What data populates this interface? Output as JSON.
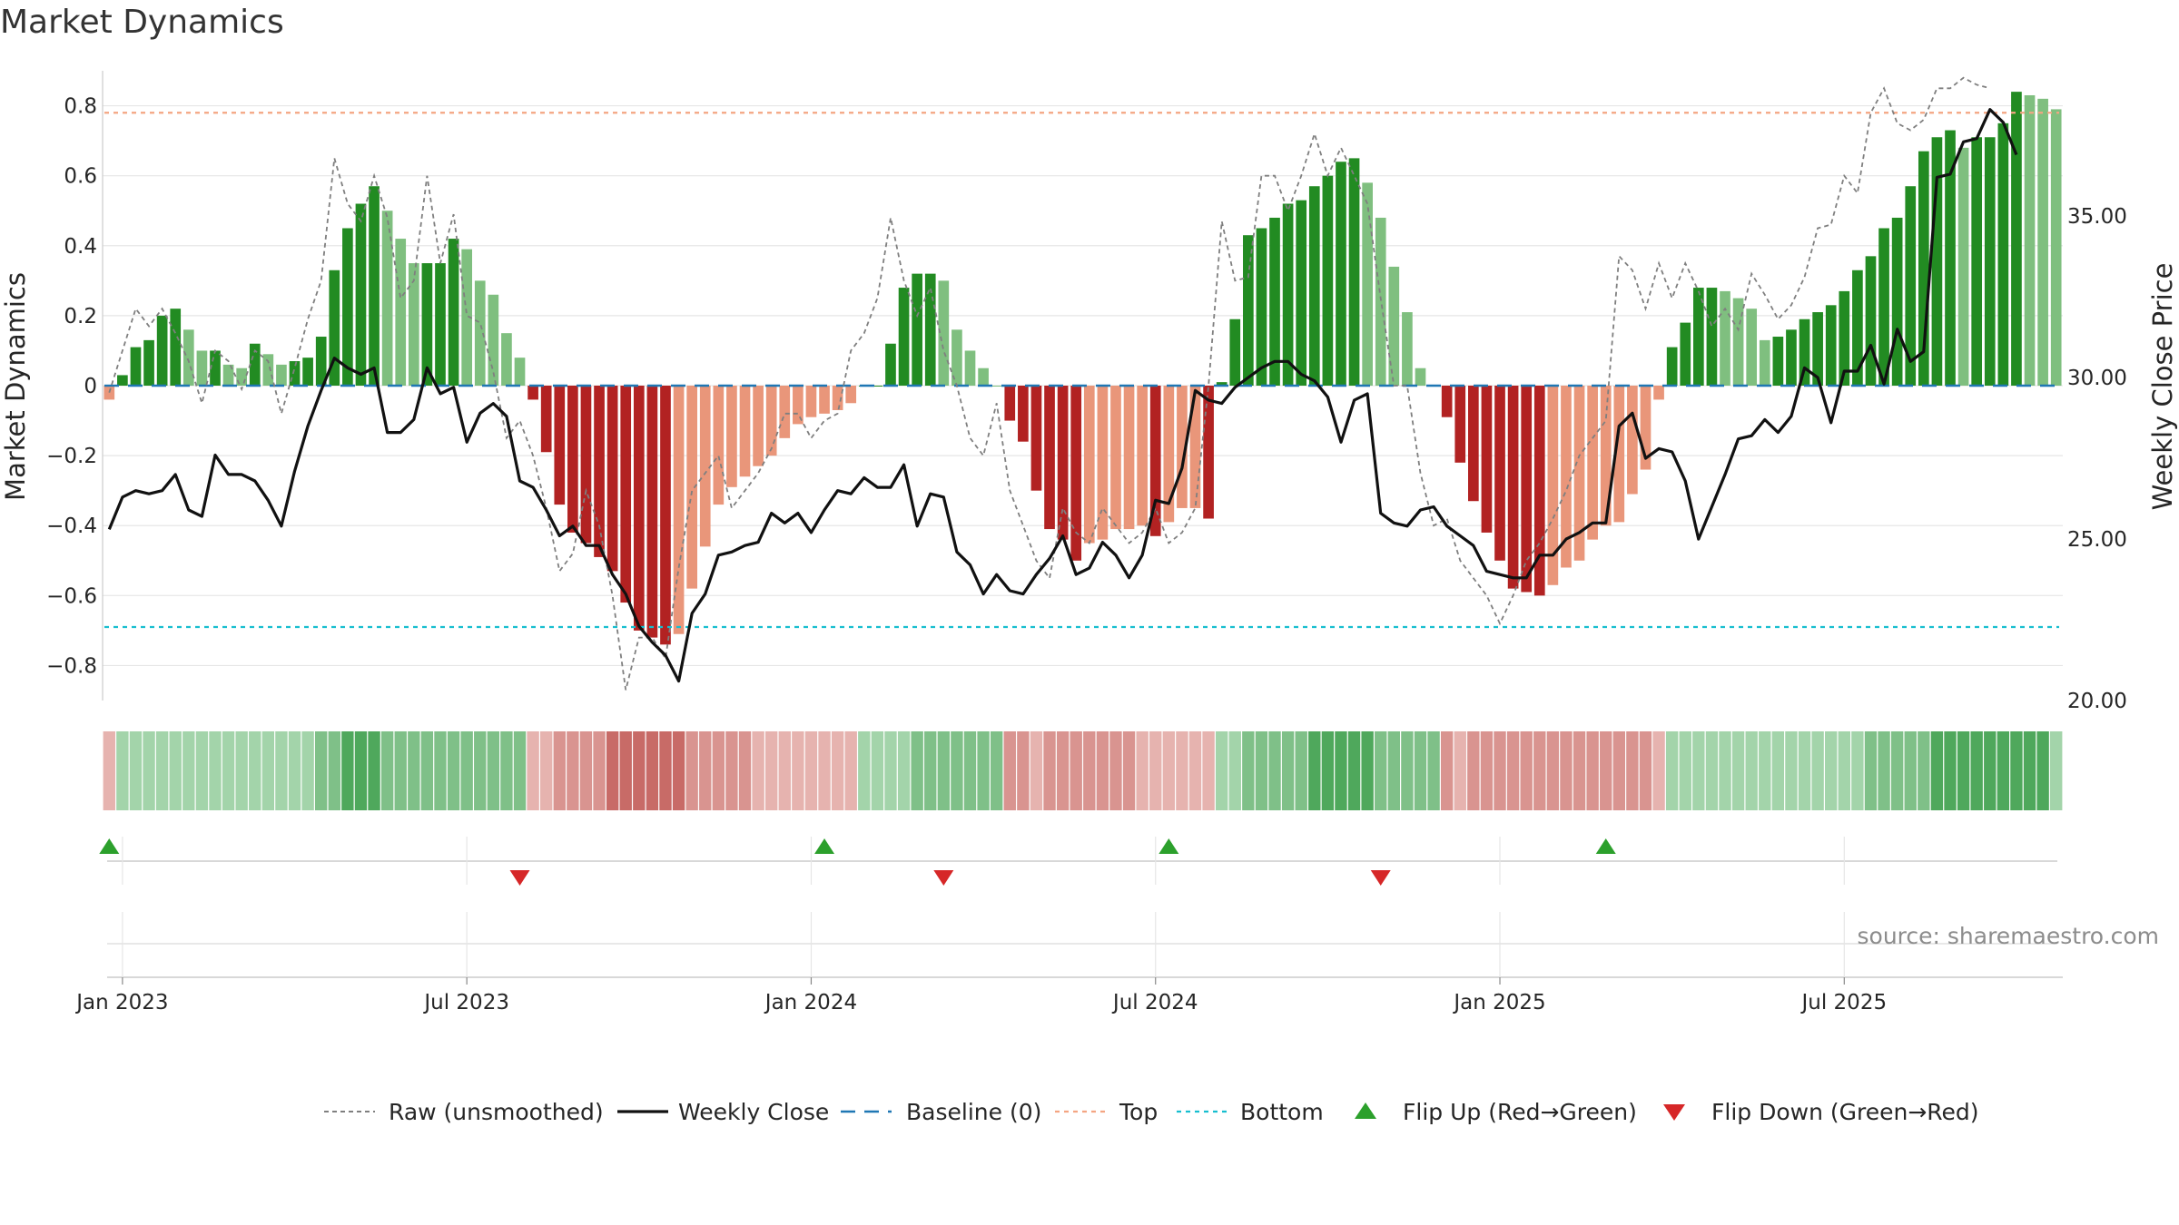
{
  "chart_data": {
    "type": "bar",
    "title": "Market Dynamics",
    "ylabel_left": "Market Dynamics",
    "ylabel_right": "Weekly Close Price",
    "ylim_left": [
      -0.9,
      0.9
    ],
    "ylim_right": [
      20.0,
      39.5
    ],
    "yticks_left": [
      "0.8",
      "0.6",
      "0.4",
      "0.2",
      "0",
      "−0.2",
      "−0.4",
      "−0.6",
      "−0.8"
    ],
    "yticks_left_values": [
      0.8,
      0.6,
      0.4,
      0.2,
      0,
      -0.2,
      -0.4,
      -0.6,
      -0.8
    ],
    "yticks_right": [
      "35.00",
      "30.00",
      "25.00",
      "20.00"
    ],
    "yticks_right_values": [
      35,
      30,
      25,
      20
    ],
    "x_ticks": [
      "Jan 2023",
      "Jul 2023",
      "Jan 2024",
      "Jul 2024",
      "Jan 2025",
      "Jul 2025"
    ],
    "x_tick_weeks": [
      0,
      26,
      52,
      78,
      104,
      130
    ],
    "start_week": -1,
    "reference_lines": {
      "top": 0.78,
      "bottom": -0.69,
      "baseline": 0
    },
    "dynamics": [
      -0.04,
      0.03,
      0.11,
      0.13,
      0.2,
      0.22,
      0.16,
      0.1,
      0.1,
      0.06,
      0.05,
      0.12,
      0.09,
      0.06,
      0.07,
      0.08,
      0.14,
      0.33,
      0.45,
      0.52,
      0.57,
      0.5,
      0.42,
      0.35,
      0.35,
      0.35,
      0.42,
      0.39,
      0.3,
      0.26,
      0.15,
      0.08,
      -0.04,
      -0.19,
      -0.34,
      -0.42,
      -0.45,
      -0.49,
      -0.53,
      -0.62,
      -0.7,
      -0.72,
      -0.74,
      -0.71,
      -0.58,
      -0.46,
      -0.34,
      -0.29,
      -0.26,
      -0.23,
      -0.2,
      -0.15,
      -0.11,
      -0.09,
      -0.08,
      -0.07,
      -0.05,
      0.0,
      0.0,
      0.12,
      0.28,
      0.32,
      0.32,
      0.3,
      0.16,
      0.1,
      0.05,
      0.0,
      -0.1,
      -0.16,
      -0.3,
      -0.41,
      -0.44,
      -0.5,
      -0.45,
      -0.44,
      -0.41,
      -0.41,
      -0.4,
      -0.43,
      -0.39,
      -0.35,
      -0.35,
      -0.38,
      0.01,
      0.19,
      0.43,
      0.45,
      0.48,
      0.52,
      0.53,
      0.57,
      0.6,
      0.64,
      0.65,
      0.58,
      0.48,
      0.34,
      0.21,
      0.05,
      0.0,
      -0.09,
      -0.22,
      -0.33,
      -0.42,
      -0.5,
      -0.58,
      -0.59,
      -0.6,
      -0.57,
      -0.52,
      -0.5,
      -0.44,
      -0.4,
      -0.39,
      -0.31,
      -0.24,
      -0.04,
      0.11,
      0.18,
      0.28,
      0.28,
      0.27,
      0.25,
      0.22,
      0.13,
      0.14,
      0.16,
      0.19,
      0.21,
      0.23,
      0.27,
      0.33,
      0.37,
      0.45,
      0.48,
      0.57,
      0.67,
      0.71,
      0.73,
      0.68,
      0.71,
      0.71,
      0.75,
      0.84,
      0.83,
      0.82,
      0.79
    ],
    "raw": [
      -0.02,
      0.1,
      0.22,
      0.17,
      0.22,
      0.15,
      0.07,
      -0.05,
      0.1,
      0.07,
      -0.01,
      0.1,
      0.07,
      -0.08,
      0.05,
      0.19,
      0.3,
      0.65,
      0.52,
      0.47,
      0.6,
      0.48,
      0.25,
      0.3,
      0.6,
      0.35,
      0.49,
      0.2,
      0.18,
      0.04,
      -0.15,
      -0.1,
      -0.2,
      -0.35,
      -0.53,
      -0.48,
      -0.3,
      -0.4,
      -0.6,
      -0.87,
      -0.72,
      -0.72,
      -0.78,
      -0.52,
      -0.3,
      -0.25,
      -0.2,
      -0.35,
      -0.3,
      -0.25,
      -0.18,
      -0.08,
      -0.08,
      -0.15,
      -0.1,
      -0.08,
      0.1,
      0.15,
      0.25,
      0.48,
      0.3,
      0.2,
      0.28,
      0.1,
      0.0,
      -0.15,
      -0.2,
      -0.05,
      -0.3,
      -0.4,
      -0.5,
      -0.55,
      -0.35,
      -0.42,
      -0.45,
      -0.35,
      -0.4,
      -0.45,
      -0.42,
      -0.35,
      -0.45,
      -0.42,
      -0.35,
      0.0,
      0.47,
      0.3,
      0.31,
      0.6,
      0.6,
      0.5,
      0.6,
      0.72,
      0.6,
      0.68,
      0.6,
      0.52,
      0.25,
      0.0,
      0.0,
      -0.25,
      -0.4,
      -0.38,
      -0.5,
      -0.55,
      -0.6,
      -0.68,
      -0.6,
      -0.5,
      -0.45,
      -0.38,
      -0.3,
      -0.2,
      -0.15,
      -0.1,
      0.37,
      0.33,
      0.22,
      0.35,
      0.25,
      0.35,
      0.27,
      0.17,
      0.22,
      0.16,
      0.32,
      0.26,
      0.19,
      0.23,
      0.31,
      0.45,
      0.46,
      0.6,
      0.55,
      0.78,
      0.85,
      0.75,
      0.73,
      0.76,
      0.85,
      0.85,
      0.88,
      0.86,
      0.85
    ],
    "weekly_close": [
      25.3,
      26.3,
      26.5,
      26.4,
      26.5,
      27.0,
      25.9,
      25.7,
      27.6,
      27.0,
      27.0,
      26.8,
      26.2,
      25.4,
      27.1,
      28.5,
      29.6,
      30.6,
      30.3,
      30.1,
      30.3,
      28.3,
      28.3,
      28.7,
      30.3,
      29.5,
      29.7,
      28.0,
      28.9,
      29.2,
      28.8,
      26.8,
      26.6,
      25.9,
      25.1,
      25.4,
      24.8,
      24.8,
      23.9,
      23.3,
      22.3,
      21.8,
      21.4,
      20.6,
      22.7,
      23.3,
      24.5,
      24.6,
      24.8,
      24.9,
      25.8,
      25.5,
      25.8,
      25.2,
      25.9,
      26.5,
      26.4,
      26.9,
      26.6,
      26.6,
      27.3,
      25.4,
      26.4,
      26.3,
      24.6,
      24.2,
      23.3,
      23.9,
      23.4,
      23.3,
      23.9,
      24.4,
      25.1,
      23.9,
      24.1,
      24.9,
      24.5,
      23.8,
      24.5,
      26.2,
      26.1,
      27.2,
      29.6,
      29.3,
      29.2,
      29.7,
      30.0,
      30.3,
      30.5,
      30.5,
      30.1,
      29.9,
      29.4,
      28.0,
      29.3,
      29.5,
      25.8,
      25.5,
      25.4,
      25.9,
      26.0,
      25.4,
      25.1,
      24.8,
      24.0,
      23.9,
      23.8,
      23.8,
      24.5,
      24.5,
      25.0,
      25.2,
      25.5,
      25.5,
      28.5,
      28.9,
      27.5,
      27.8,
      27.7,
      26.8,
      25.0,
      26.0,
      27.0,
      28.1,
      28.2,
      28.7,
      28.3,
      28.8,
      30.3,
      30.0,
      28.6,
      30.2,
      30.2,
      31.0,
      29.8,
      31.5,
      30.5,
      30.8,
      36.2,
      36.3,
      37.3,
      37.4,
      38.3,
      37.9,
      36.9
    ],
    "regime_shades": [
      1,
      1,
      1,
      1,
      1,
      1,
      1,
      1,
      1,
      1,
      1,
      1,
      1,
      1,
      1,
      1,
      2,
      2,
      3,
      3,
      3,
      2,
      2,
      2,
      2,
      2,
      2,
      2,
      2,
      2,
      2,
      2,
      1,
      1,
      2,
      2,
      2,
      2,
      3,
      3,
      3,
      3,
      3,
      3,
      2,
      2,
      2,
      2,
      2,
      1,
      1,
      1,
      1,
      1,
      1,
      1,
      1,
      1,
      1,
      1,
      1,
      2,
      2,
      2,
      2,
      2,
      2,
      2,
      2,
      2,
      1,
      2,
      2,
      2,
      2,
      2,
      2,
      2,
      1,
      1,
      1,
      1,
      1,
      1,
      1,
      1,
      2,
      2,
      2,
      2,
      2,
      3,
      3,
      3,
      3,
      3,
      2,
      2,
      2,
      2,
      2,
      2,
      1,
      2,
      2,
      2,
      2,
      2,
      2,
      2,
      2,
      2,
      2,
      2,
      2,
      2,
      2,
      1,
      1,
      1,
      1,
      1,
      1,
      1,
      1,
      1,
      1,
      1,
      1,
      1,
      1,
      1,
      1,
      2,
      2,
      2,
      2,
      2,
      3,
      3,
      3,
      3,
      3,
      3,
      3,
      3,
      3
    ],
    "flip_up_weeks": [
      -1,
      53,
      79,
      112
    ],
    "flip_down_weeks": [
      30,
      62,
      95
    ],
    "legend": [
      {
        "key": "raw",
        "label": "Raw (unsmoothed)"
      },
      {
        "key": "close",
        "label": "Weekly Close"
      },
      {
        "key": "baseline",
        "label": "Baseline (0)"
      },
      {
        "key": "top",
        "label": "Top"
      },
      {
        "key": "bottom",
        "label": "Bottom"
      },
      {
        "key": "flipup",
        "label": "Flip Up (Red→Green)"
      },
      {
        "key": "flipdown",
        "label": "Flip Down (Green→Red)"
      }
    ],
    "source_note": "source: sharemaestro.com"
  },
  "colors": {
    "green_dark": "#228b22",
    "green_light": "#7fbf7f",
    "red_dark": "#b22222",
    "red_light": "#e9967a",
    "raw": "#7f7f7f",
    "close": "#111111",
    "baseline": "#1f77b4",
    "top": "#f4a582",
    "bottom": "#17becf",
    "flip_up": "#2ca02c",
    "flip_down": "#d62728",
    "grid": "#e6e6e6"
  }
}
